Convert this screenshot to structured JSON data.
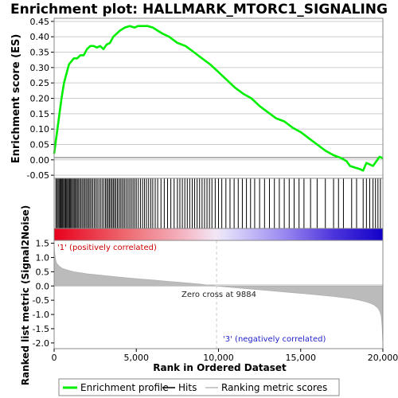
{
  "chart_data": {
    "type": "line",
    "title": "Enrichment plot: HALLMARK_MTORC1_SIGNALING",
    "colors": {
      "profile": "#00ee00",
      "hits": "#000000",
      "metric": "#bbbbbb",
      "grid": "#cccccc",
      "pos_label": "#cc0000",
      "neg_label": "#2222cc"
    },
    "top_panel": {
      "ylabel": "Enrichment score (ES)",
      "ylim": [
        -0.06,
        0.46
      ],
      "yticks": [
        "0.45",
        "0.40",
        "0.35",
        "0.30",
        "0.25",
        "0.20",
        "0.15",
        "0.10",
        "0.05",
        "0.00",
        "-0.05"
      ],
      "ytick_values": [
        0.45,
        0.4,
        0.35,
        0.3,
        0.25,
        0.2,
        0.15,
        0.1,
        0.05,
        0.0,
        -0.05
      ],
      "grid": true,
      "series": [
        {
          "name": "Enrichment profile",
          "x": [
            0,
            150,
            300,
            450,
            600,
            750,
            900,
            1050,
            1200,
            1400,
            1600,
            1800,
            2000,
            2200,
            2400,
            2600,
            2800,
            3000,
            3200,
            3400,
            3600,
            3800,
            4000,
            4300,
            4600,
            4900,
            5100,
            5400,
            5700,
            6000,
            6300,
            6600,
            7000,
            7500,
            8000,
            8500,
            9000,
            9500,
            10000,
            10500,
            11000,
            11500,
            12000,
            12500,
            13000,
            13500,
            14000,
            14500,
            15000,
            15500,
            16000,
            16500,
            17000,
            17500,
            17800,
            18000,
            18300,
            18600,
            18800,
            19000,
            19200,
            19400,
            19600,
            19800,
            20000
          ],
          "y": [
            0.02,
            0.08,
            0.14,
            0.2,
            0.25,
            0.28,
            0.31,
            0.32,
            0.33,
            0.33,
            0.34,
            0.34,
            0.36,
            0.37,
            0.37,
            0.365,
            0.37,
            0.36,
            0.375,
            0.38,
            0.4,
            0.41,
            0.42,
            0.43,
            0.435,
            0.43,
            0.435,
            0.435,
            0.435,
            0.43,
            0.42,
            0.41,
            0.4,
            0.38,
            0.37,
            0.35,
            0.33,
            0.31,
            0.285,
            0.26,
            0.235,
            0.215,
            0.2,
            0.175,
            0.155,
            0.135,
            0.125,
            0.105,
            0.09,
            0.07,
            0.05,
            0.03,
            0.015,
            0.005,
            -0.005,
            -0.02,
            -0.025,
            -0.03,
            -0.035,
            -0.01,
            -0.015,
            -0.02,
            -0.005,
            0.01,
            0.005
          ]
        }
      ]
    },
    "hits_panel": {
      "legend_name": "Hits",
      "positions": [
        100,
        170,
        240,
        300,
        360,
        420,
        470,
        520,
        580,
        640,
        700,
        760,
        820,
        880,
        940,
        1000,
        1060,
        1120,
        1200,
        1260,
        1320,
        1400,
        1460,
        1540,
        1620,
        1700,
        1780,
        1860,
        1940,
        2020,
        2100,
        2180,
        2260,
        2350,
        2440,
        2530,
        2620,
        2720,
        2820,
        2920,
        3020,
        3120,
        3200,
        3280,
        3360,
        3440,
        3520,
        3600,
        3680,
        3760,
        3850,
        3940,
        4030,
        4120,
        4210,
        4300,
        4400,
        4500,
        4600,
        4700,
        4800,
        4900,
        5000,
        5120,
        5250,
        5380,
        5500,
        5620,
        5750,
        5880,
        6000,
        6150,
        6300,
        6500,
        6700,
        6900,
        7100,
        7300,
        7500,
        7650,
        7800,
        7950,
        8100,
        8250,
        8400,
        8550,
        8700,
        8850,
        9000,
        9150,
        9300,
        9450,
        9600,
        9800,
        10000,
        10200,
        10450,
        10700,
        10950,
        11200,
        11450,
        11700,
        11950,
        12200,
        12500,
        12800,
        13100,
        13400,
        13700,
        14000,
        14300,
        14600,
        14900,
        15200,
        15600,
        16000,
        16500,
        17000,
        17300,
        17600,
        18100,
        18400,
        18800,
        19000,
        19200,
        19400,
        19550,
        19700,
        19850
      ]
    },
    "ranking_panel": {
      "legend_name": "Ranking metric scores",
      "ylabel": "Ranked list metric (Signal2Noise)",
      "xlabel": "Rank in Ordered Dataset",
      "xlim": [
        0,
        20000
      ],
      "xticks": [
        "0",
        "5,000",
        "10,000",
        "15,000",
        "20,000"
      ],
      "xtick_values": [
        0,
        5000,
        10000,
        15000,
        20000
      ],
      "ylim": [
        -2.2,
        1.6
      ],
      "yticks": [
        "1.5",
        "1.0",
        "0.5",
        "0.0",
        "-0.5",
        "-1.0",
        "-1.5",
        "-2.0"
      ],
      "ytick_values": [
        1.5,
        1.0,
        0.5,
        0.0,
        -0.5,
        -1.0,
        -1.5,
        -2.0
      ],
      "x": [
        0,
        30,
        80,
        150,
        300,
        500,
        800,
        1200,
        2000,
        3000,
        4000,
        5000,
        6000,
        7000,
        8000,
        9000,
        9884,
        11000,
        12000,
        13000,
        14000,
        15000,
        16000,
        17000,
        18000,
        18500,
        19000,
        19300,
        19500,
        19700,
        19800,
        19900,
        19950,
        20000
      ],
      "y": [
        1.5,
        1.2,
        0.95,
        0.8,
        0.7,
        0.62,
        0.56,
        0.5,
        0.43,
        0.37,
        0.31,
        0.26,
        0.21,
        0.16,
        0.11,
        0.06,
        0.0,
        -0.06,
        -0.11,
        -0.16,
        -0.21,
        -0.26,
        -0.31,
        -0.37,
        -0.44,
        -0.49,
        -0.56,
        -0.62,
        -0.68,
        -0.78,
        -0.88,
        -1.05,
        -1.4,
        -2.15
      ],
      "zero_cross_label": "Zero cross at 9884",
      "pos_label": "'1' (positively correlated)",
      "neg_label": "'3' (negatively correlated)"
    },
    "legend": {
      "placement": "bottom",
      "items": [
        "Enrichment profile",
        "Hits",
        "Ranking metric scores"
      ]
    }
  }
}
